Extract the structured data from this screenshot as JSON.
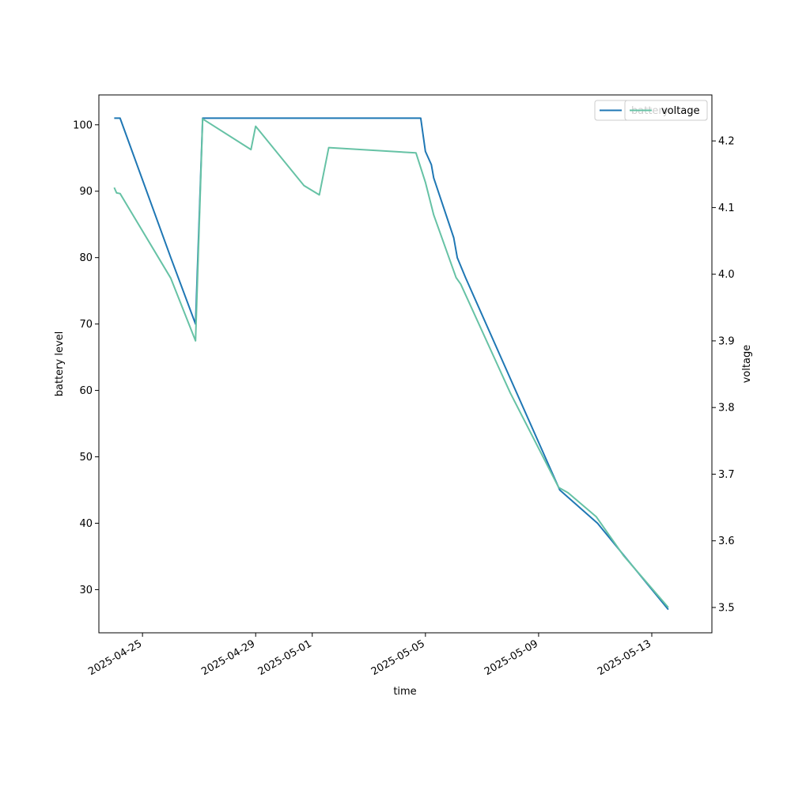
{
  "chart_data": {
    "type": "line",
    "xlabel": "time",
    "ylabel": "battery level",
    "y2label": "voltage",
    "xlim": [
      "2025-04-23T11:00",
      "2025-05-15T03:00"
    ],
    "ylim": [
      23.5,
      104.5
    ],
    "y2lim": [
      3.462,
      4.269
    ],
    "x_ticks": [
      "2025-04-25",
      "2025-04-29",
      "2025-05-01",
      "2025-05-05",
      "2025-05-09",
      "2025-05-13"
    ],
    "y_ticks": [
      30,
      40,
      50,
      60,
      70,
      80,
      90,
      100
    ],
    "y2_ticks": [
      "3.5",
      "3.6",
      "3.7",
      "3.8",
      "3.9",
      "4.0",
      "4.1",
      "4.2"
    ],
    "grid": false,
    "legends": [
      {
        "placement": "top-right",
        "entries": [
          {
            "label": "battery",
            "color": "#1f77b4"
          }
        ]
      },
      {
        "placement": "top-right",
        "entries": [
          {
            "label": "voltage",
            "color": "#66c2a5"
          }
        ]
      }
    ],
    "series": [
      {
        "name": "battery",
        "axis": "left",
        "color": "#1f77b4",
        "points": [
          [
            "2025-04-24T00:00",
            101
          ],
          [
            "2025-04-24T04:00",
            101
          ],
          [
            "2025-04-24T05:00",
            101
          ],
          [
            "2025-04-26T00:00",
            80
          ],
          [
            "2025-04-26T21:00",
            70
          ],
          [
            "2025-04-27T03:00",
            101
          ],
          [
            "2025-05-04T20:00",
            101
          ],
          [
            "2025-05-05T00:00",
            96
          ],
          [
            "2025-05-05T05:00",
            94
          ],
          [
            "2025-05-05T07:00",
            92
          ],
          [
            "2025-05-06T00:00",
            83
          ],
          [
            "2025-05-06T03:00",
            80
          ],
          [
            "2025-05-06T10:00",
            77
          ],
          [
            "2025-05-09T18:00",
            45
          ],
          [
            "2025-05-11T02:00",
            40
          ],
          [
            "2025-05-13T14:00",
            27
          ]
        ]
      },
      {
        "name": "voltage",
        "axis": "right",
        "color": "#66c2a5",
        "points": [
          [
            "2025-04-24T00:00",
            4.13
          ],
          [
            "2025-04-24T02:00",
            4.122
          ],
          [
            "2025-04-24T05:00",
            4.121
          ],
          [
            "2025-04-26T00:00",
            3.994
          ],
          [
            "2025-04-26T21:00",
            3.9
          ],
          [
            "2025-04-27T03:00",
            4.233
          ],
          [
            "2025-04-28T20:00",
            4.187
          ],
          [
            "2025-04-29T00:00",
            4.222
          ],
          [
            "2025-04-30T17:00",
            4.133
          ],
          [
            "2025-05-01T06:00",
            4.119
          ],
          [
            "2025-05-01T14:00",
            4.19
          ],
          [
            "2025-05-04T16:00",
            4.182
          ],
          [
            "2025-05-05T00:00",
            4.138
          ],
          [
            "2025-05-05T07:00",
            4.089
          ],
          [
            "2025-05-06T02:00",
            3.995
          ],
          [
            "2025-05-06T06:00",
            3.985
          ],
          [
            "2025-05-08T00:00",
            3.822
          ],
          [
            "2025-05-09T17:00",
            3.68
          ],
          [
            "2025-05-10T01:00",
            3.672
          ],
          [
            "2025-05-11T01:00",
            3.636
          ],
          [
            "2025-05-12T00:00",
            3.578
          ],
          [
            "2025-05-13T14:00",
            3.5
          ]
        ]
      }
    ]
  }
}
